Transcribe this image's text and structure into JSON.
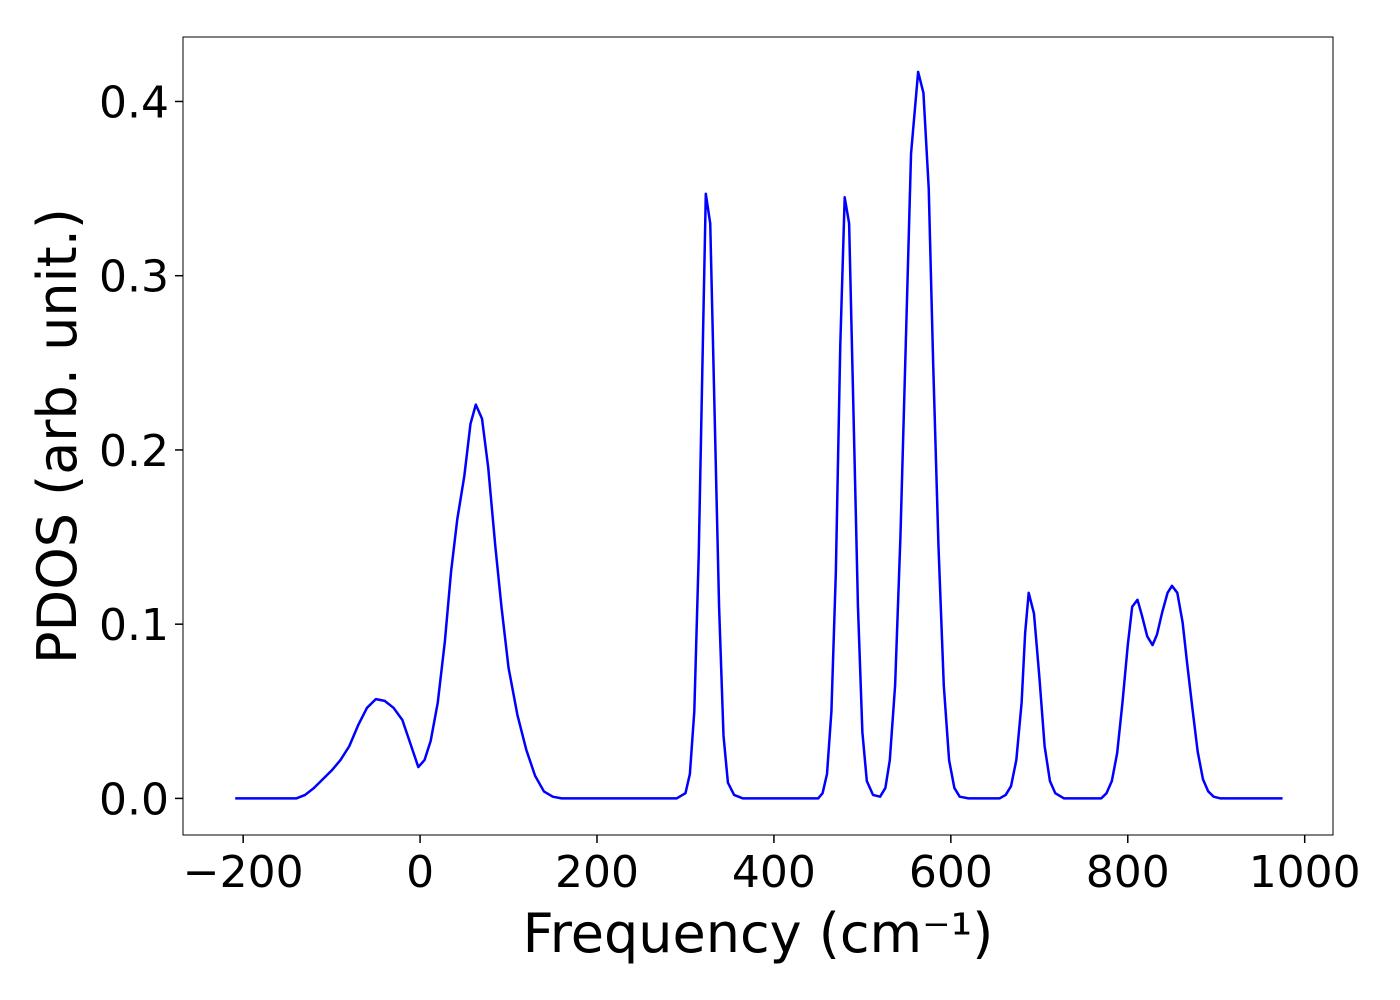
{
  "chart_data": {
    "type": "line",
    "xlabel": "Frequency (cm⁻¹)",
    "ylabel": "PDOS (arb. unit.)",
    "color": "#0000ff",
    "xlim": [
      -268,
      1032
    ],
    "ylim": [
      -0.021,
      0.437
    ],
    "xticks": [
      {
        "value": -200,
        "label": "−200"
      },
      0,
      200,
      400,
      600,
      800,
      1000
    ],
    "yticks": [
      {
        "value": 0,
        "label": "0.0"
      },
      0.1,
      0.2,
      0.3,
      0.4
    ],
    "x": [
      -209,
      -140,
      -130,
      -120,
      -110,
      -100,
      -90,
      -80,
      -70,
      -60,
      -50,
      -40,
      -30,
      -20,
      -10,
      -2,
      5,
      12,
      20,
      28,
      35,
      42,
      50,
      57,
      63,
      70,
      77,
      85,
      92,
      100,
      110,
      120,
      130,
      140,
      150,
      160,
      290,
      300,
      305,
      310,
      315,
      320,
      323,
      328,
      333,
      338,
      343,
      348,
      355,
      365,
      450,
      455,
      460,
      465,
      470,
      475,
      480,
      485,
      490,
      495,
      500,
      505,
      512,
      520,
      526,
      531,
      537,
      543,
      549,
      555,
      563,
      569,
      575,
      580,
      586,
      592,
      598,
      604,
      610,
      620,
      655,
      662,
      668,
      674,
      680,
      684,
      688,
      694,
      700,
      706,
      712,
      718,
      728,
      770,
      776,
      782,
      788,
      794,
      800,
      805,
      811,
      816,
      822,
      828,
      833,
      839,
      845,
      850,
      856,
      862,
      867,
      873,
      879,
      885,
      891,
      897,
      905,
      975
    ],
    "values": [
      0,
      0,
      0.002,
      0.006,
      0.011,
      0.016,
      0.022,
      0.03,
      0.042,
      0.052,
      0.057,
      0.056,
      0.052,
      0.045,
      0.03,
      0.018,
      0.022,
      0.033,
      0.055,
      0.09,
      0.13,
      0.16,
      0.185,
      0.215,
      0.226,
      0.218,
      0.19,
      0.145,
      0.11,
      0.075,
      0.048,
      0.028,
      0.013,
      0.004,
      0.001,
      0,
      0,
      0.003,
      0.014,
      0.05,
      0.14,
      0.27,
      0.347,
      0.33,
      0.22,
      0.11,
      0.036,
      0.009,
      0.002,
      0,
      0,
      0.003,
      0.014,
      0.05,
      0.13,
      0.26,
      0.345,
      0.33,
      0.22,
      0.11,
      0.038,
      0.01,
      0.002,
      0.001,
      0.006,
      0.022,
      0.065,
      0.15,
      0.26,
      0.37,
      0.417,
      0.405,
      0.35,
      0.25,
      0.145,
      0.065,
      0.022,
      0.006,
      0.001,
      0,
      0,
      0.002,
      0.007,
      0.022,
      0.055,
      0.095,
      0.118,
      0.106,
      0.07,
      0.03,
      0.01,
      0.003,
      0,
      0,
      0.003,
      0.01,
      0.026,
      0.055,
      0.088,
      0.11,
      0.114,
      0.105,
      0.093,
      0.088,
      0.094,
      0.107,
      0.118,
      0.122,
      0.118,
      0.101,
      0.078,
      0.052,
      0.027,
      0.011,
      0.004,
      0.001,
      0,
      0
    ]
  }
}
